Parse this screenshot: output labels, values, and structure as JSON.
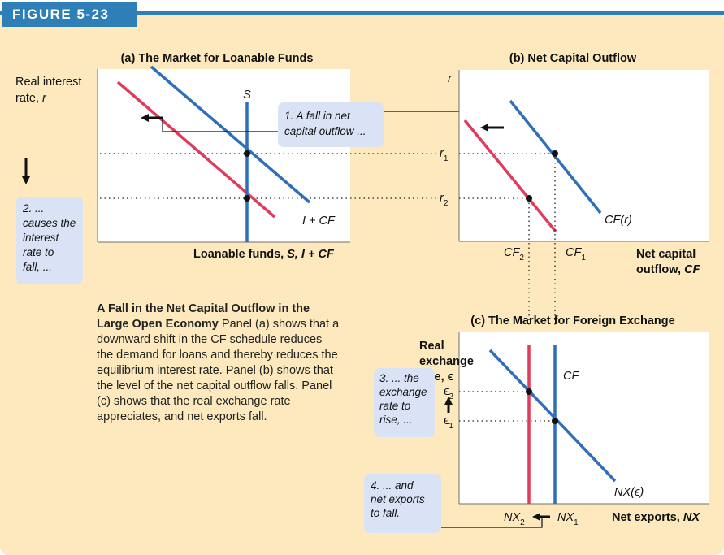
{
  "figure_label": "FIGURE 5-23",
  "caption": {
    "title": "A Fall in the Net Capital Outflow in the Large Open Economy",
    "body": "Panel (a) shows that a downward shift in the CF schedule reduces the demand for loans and thereby reduces the equilibrium interest rate. Panel (b) shows that the level of the net capital outflow falls. Panel (c) shows that the real exchange rate appreciates, and net exports fall."
  },
  "panel_a": {
    "title": "(a) The Market for Loanable Funds",
    "ylabel_line1": "Real interest",
    "ylabel_line2": "rate,",
    "ylabel_var": "r",
    "xlabel": "Loanable funds,",
    "xlabel_var": "S, I + CF",
    "supply_label": "S",
    "demand_label": "I + CF",
    "note1_line1": "1. A fall in net",
    "note1_line2": "capital outflow ...",
    "note2_lines": [
      "2. ...",
      "causes the",
      "interest",
      "rate to",
      "fall, ..."
    ]
  },
  "panel_b": {
    "title": "(b) Net Capital Outflow",
    "ylabel": "r",
    "r1_base": "r",
    "r1_sub": "1",
    "r2_base": "r",
    "r2_sub": "2",
    "curve_label": "CF(r)",
    "cf1_base": "CF",
    "cf1_sub": "1",
    "cf2_base": "CF",
    "cf2_sub": "2",
    "xlabel_line1": "Net capital",
    "xlabel_line2": "outflow,",
    "xlabel_var": "CF"
  },
  "panel_c": {
    "title": "(c) The Market for Foreign Exchange",
    "ylabel_lines": [
      "Real",
      "exchange"
    ],
    "ylabel_line3": "rate,",
    "ylabel_var": "ϵ",
    "cf_label": "CF",
    "nx_label": "NX(ϵ)",
    "e1_base": "ϵ",
    "e1_sub": "1",
    "e2_base": "ϵ",
    "e2_sub": "2",
    "nx1_base": "NX",
    "nx1_sub": "1",
    "nx2_base": "NX",
    "nx2_sub": "2",
    "xlabel": "Net exports,",
    "xlabel_var": "NX",
    "note3_lines": [
      "3. ... the",
      "exchange",
      "rate to",
      "rise, ..."
    ],
    "note4_lines": [
      "4. ... and",
      "net exports",
      "to fall."
    ]
  },
  "colors": {
    "background_panel": "#fde9bd",
    "plot_area": "#ffffff",
    "blue_curve": "#2e6fba",
    "red_curve": "#e03a5c",
    "note_box": "#d9e3f5",
    "figure_tag": "#2e7fb8"
  }
}
